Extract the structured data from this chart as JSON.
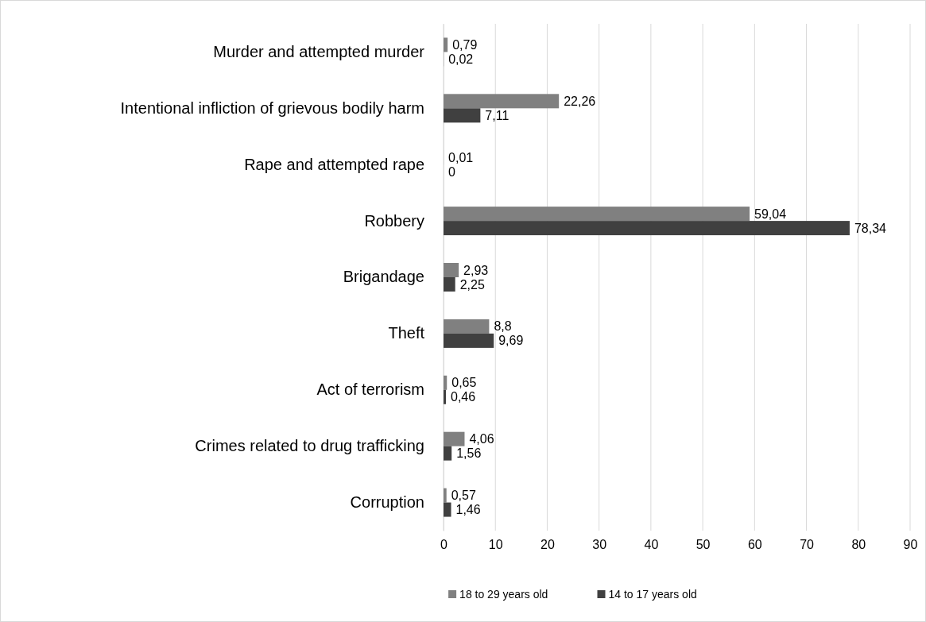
{
  "chart_data": {
    "type": "bar",
    "orientation": "horizontal",
    "categories": [
      "Murder and attempted murder",
      "Intentional infliction of grievous bodily harm",
      "Rape and attempted rape",
      "Robbery",
      "Brigandage",
      "Theft",
      "Act of terrorism",
      "Crimes related to drug trafficking",
      "Corruption"
    ],
    "series": [
      {
        "name": "18 to 29 years old",
        "color": "#808080",
        "values": [
          0.79,
          22.26,
          0.01,
          59.04,
          2.93,
          8.8,
          0.65,
          4.06,
          0.57
        ],
        "value_labels": [
          "0,79",
          "22,26",
          "0,01",
          "59,04",
          "2,93",
          "8,8",
          "0,65",
          "4,06",
          "0,57"
        ]
      },
      {
        "name": "14 to 17 years old",
        "color": "#404040",
        "values": [
          0.02,
          7.11,
          0,
          78.34,
          2.25,
          9.69,
          0.46,
          1.56,
          1.46
        ],
        "value_labels": [
          "0,02",
          "7,11",
          "0",
          "78,34",
          "2,25",
          "9,69",
          "0,46",
          "1,56",
          "1,46"
        ]
      }
    ],
    "xlim": [
      0,
      90
    ],
    "xticks": [
      0,
      10,
      20,
      30,
      40,
      50,
      60,
      70,
      80,
      90
    ],
    "grid": "x",
    "legend": "bottom"
  }
}
